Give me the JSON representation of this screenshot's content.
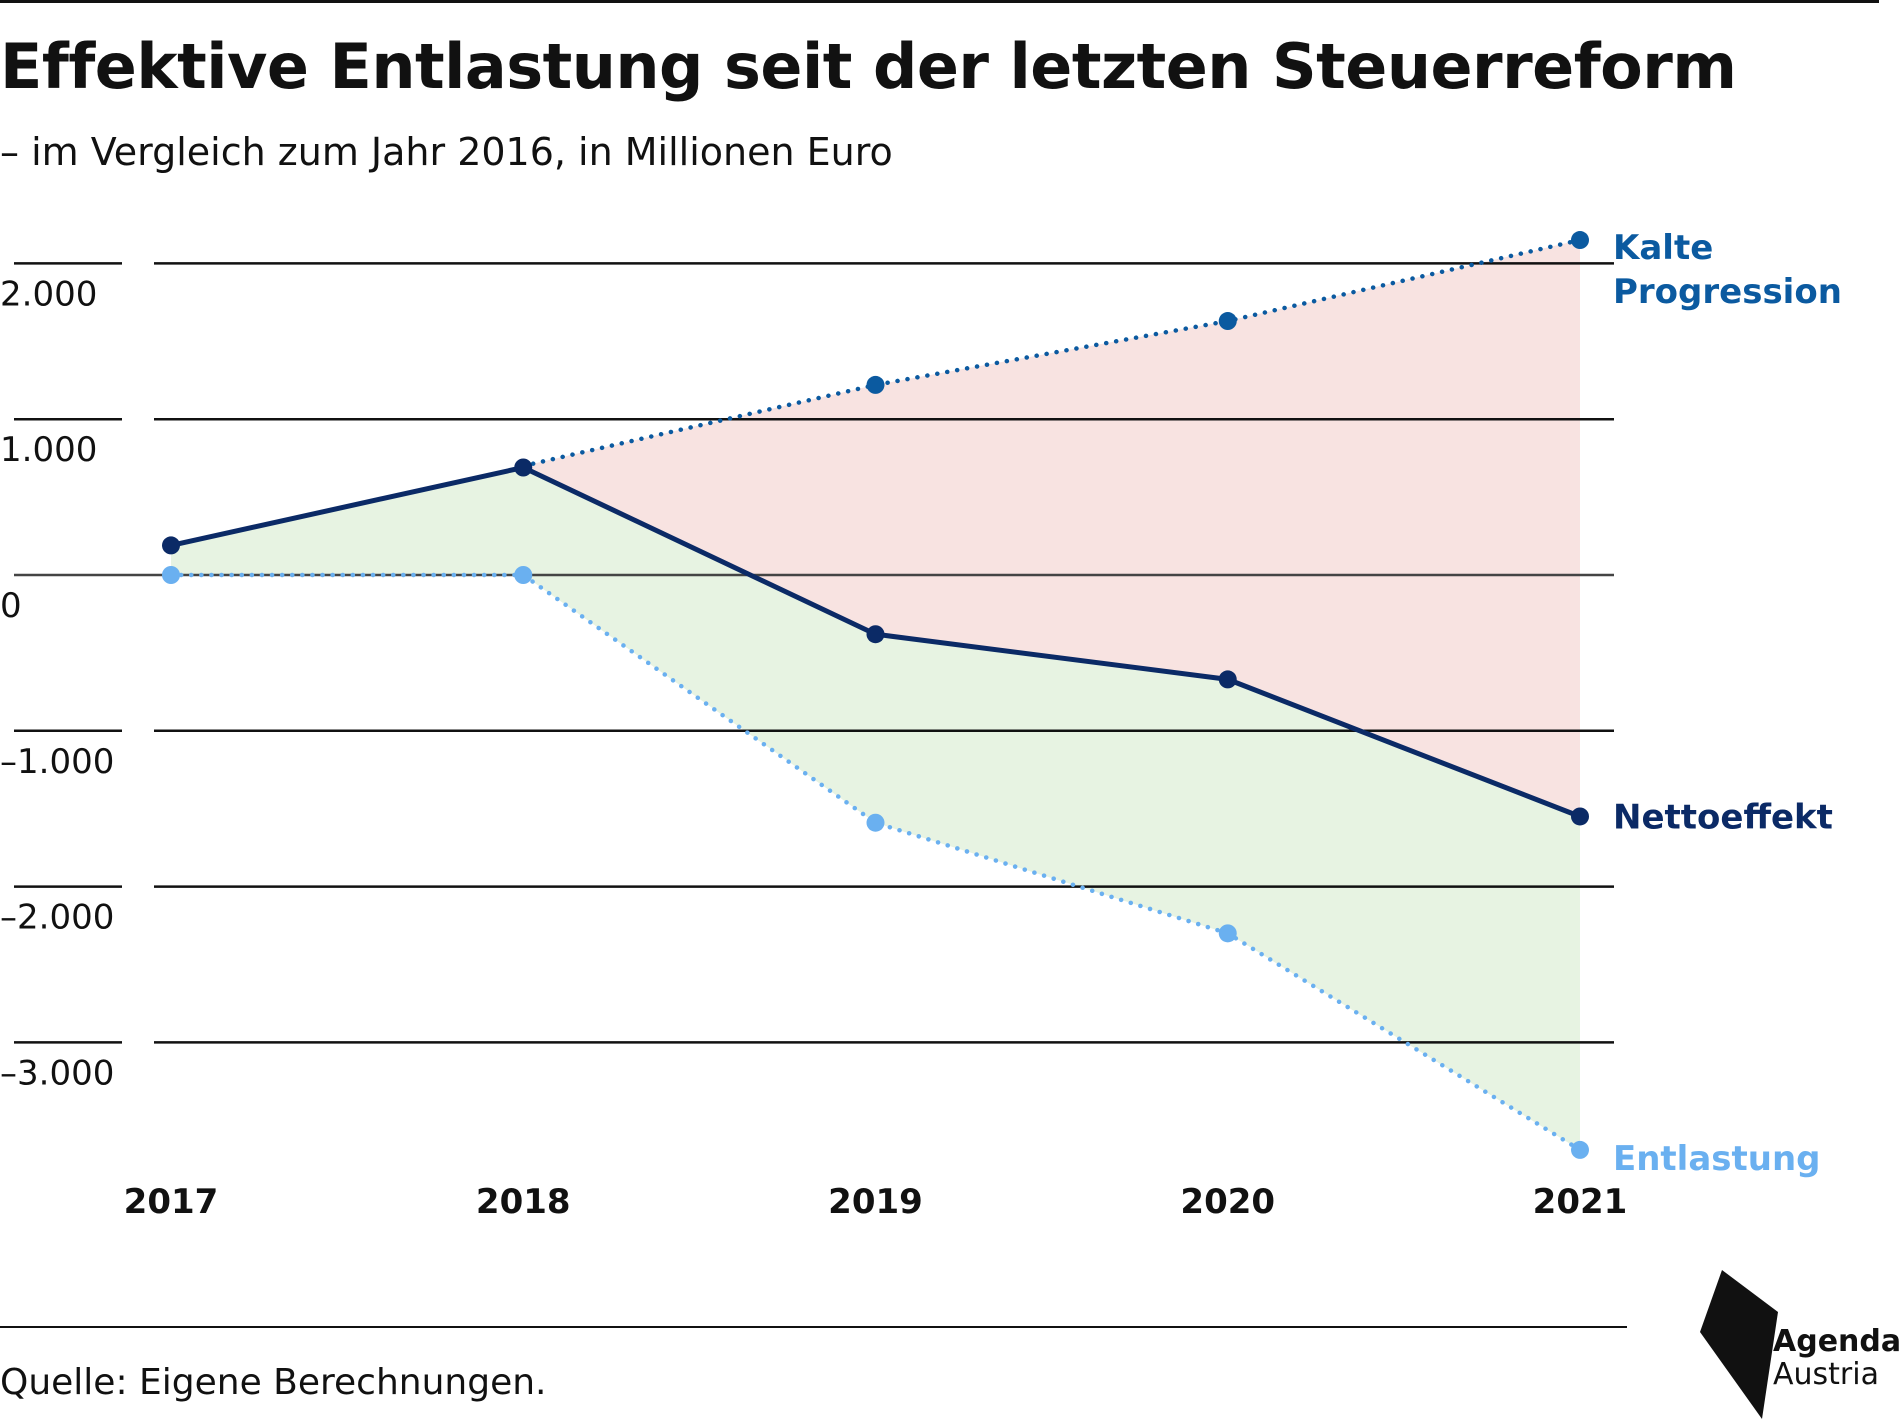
{
  "header": {
    "title": "Effektive Entlastung seit der letzten Steuerreform",
    "subtitle": "– im Vergleich zum Jahr 2016, in Millionen Euro"
  },
  "footer": {
    "source": "Quelle: Eigene Berechnungen.",
    "logo_line1": "Agenda",
    "logo_line2": "Austria"
  },
  "chart_data": {
    "type": "line",
    "x": [
      "2017",
      "2018",
      "2019",
      "2020",
      "2021"
    ],
    "y_ticks": [
      2000,
      1000,
      0,
      -1000,
      -2000,
      -3000
    ],
    "y_tick_labels": [
      "2.000",
      "1.000",
      "0",
      "–1.000",
      "–2.000",
      "–3.000"
    ],
    "ylim": [
      -3700,
      2200
    ],
    "grid": true,
    "series": [
      {
        "name": "Kalte Progression",
        "label_lines": [
          "Kalte",
          "Progression"
        ],
        "values": [
          0,
          700,
          1220,
          1630,
          2150
        ],
        "style": "dotted",
        "color": "#0b5aa0"
      },
      {
        "name": "Nettoeffekt",
        "label_lines": [
          "Nettoeffekt"
        ],
        "values": [
          190,
          690,
          -380,
          -670,
          -1550
        ],
        "style": "solid",
        "color": "#0b2a66"
      },
      {
        "name": "Entlastung",
        "label_lines": [
          "Entlastung"
        ],
        "values": [
          0,
          0,
          -1590,
          -2300,
          -3690
        ],
        "style": "dotted",
        "color": "#6ab0f0"
      }
    ],
    "fill_colors": {
      "positive": "#e7f3e2",
      "negative": "#f8e3e1"
    }
  }
}
